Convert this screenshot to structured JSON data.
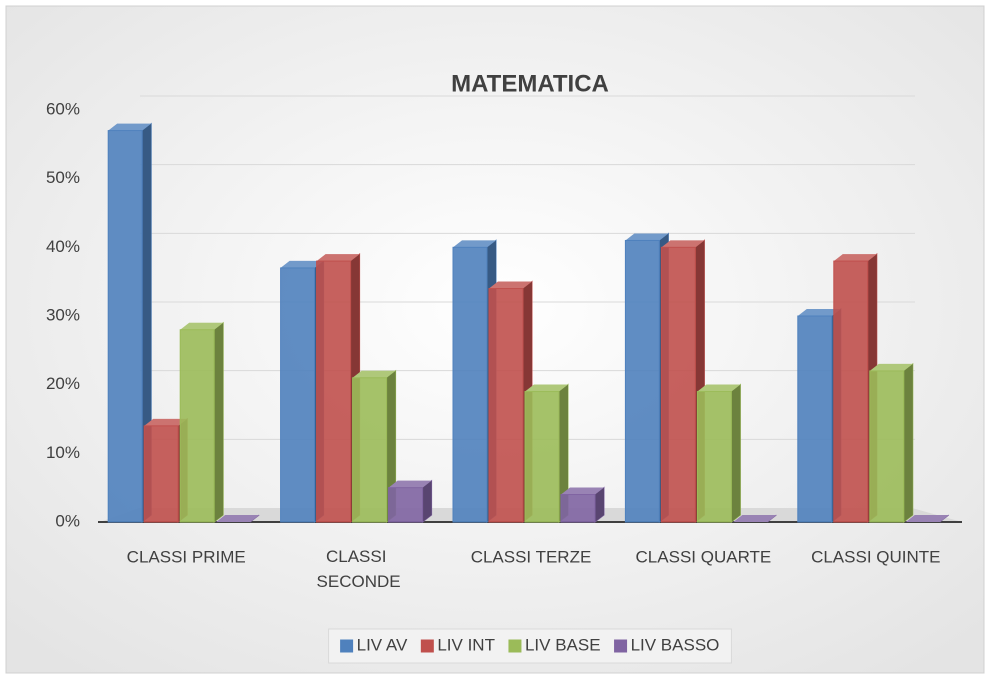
{
  "chart_data": {
    "type": "bar",
    "title": "MATEMATICA",
    "categories": [
      "CLASSI PRIME",
      "CLASSI SECONDE",
      "CLASSI TERZE",
      "CLASSI QUARTE",
      "CLASSI QUINTE"
    ],
    "series": [
      {
        "name": "LIV AV",
        "color": "#4f81bd",
        "values": [
          57,
          37,
          40,
          41,
          30
        ]
      },
      {
        "name": "LIV INT",
        "color": "#c0504d",
        "values": [
          14,
          38,
          34,
          40,
          38
        ]
      },
      {
        "name": "LIV BASE",
        "color": "#9bbb59",
        "values": [
          28,
          21,
          19,
          19,
          22
        ]
      },
      {
        "name": "LIV BASSO",
        "color": "#8064a2",
        "values": [
          0,
          5,
          4,
          0,
          0
        ]
      }
    ],
    "ylim": [
      0,
      60
    ],
    "yticks": [
      {
        "value": 0,
        "label": "0%"
      },
      {
        "value": 10,
        "label": "10%"
      },
      {
        "value": 20,
        "label": "20%"
      },
      {
        "value": 30,
        "label": "30%"
      },
      {
        "value": 40,
        "label": "40%"
      },
      {
        "value": 50,
        "label": "50%"
      },
      {
        "value": 60,
        "label": "60%"
      }
    ],
    "grid": true,
    "legend": "bottom"
  }
}
